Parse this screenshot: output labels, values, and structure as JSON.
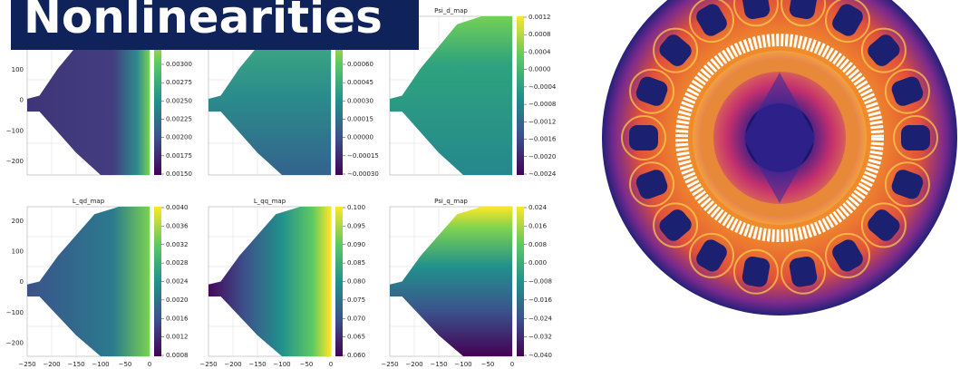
{
  "title": "Nonlinearities",
  "panels": [
    {
      "y_ticks": [
        "100",
        "0",
        "−100",
        "−200"
      ],
      "colorbar_ticks": [
        "0.00300",
        "0.00275",
        "0.00250",
        "0.00225",
        "0.00200",
        "0.00175",
        "0.00150"
      ]
    },
    {
      "colorbar_ticks": [
        "0.00060",
        "0.00045",
        "0.00030",
        "0.00015",
        "0.00000",
        "−0.00015",
        "−0.00030"
      ]
    },
    {
      "title": "Psi_d_map",
      "colorbar_ticks": [
        "0.0012",
        "0.0008",
        "0.0004",
        "0.0000",
        "−0.0004",
        "−0.0008",
        "−0.0012",
        "−0.0016",
        "−0.0020",
        "−0.0024"
      ]
    },
    {
      "title": "L_qd_map",
      "y_ticks": [
        "200",
        "100",
        "0",
        "−100",
        "−200"
      ],
      "colorbar_ticks": [
        "0.0040",
        "0.0036",
        "0.0032",
        "0.0028",
        "0.0024",
        "0.0020",
        "0.0016",
        "0.0012",
        "0.0008"
      ],
      "x_ticks": [
        "−250",
        "−200",
        "−150",
        "−100",
        "−50",
        "0"
      ]
    },
    {
      "title": "L_qq_map",
      "colorbar_ticks": [
        "0.100",
        "0.095",
        "0.090",
        "0.085",
        "0.080",
        "0.075",
        "0.070",
        "0.065",
        "0.060"
      ],
      "x_ticks": [
        "−250",
        "−200",
        "−150",
        "−100",
        "−50",
        "0"
      ]
    },
    {
      "title": "Psi_q_map",
      "colorbar_ticks": [
        "0.024",
        "0.016",
        "0.008",
        "0.000",
        "−0.008",
        "−0.016",
        "−0.024",
        "−0.032",
        "−0.040"
      ],
      "x_ticks": [
        "−250",
        "−200",
        "−150",
        "−100",
        "−50",
        "0"
      ]
    }
  ]
}
